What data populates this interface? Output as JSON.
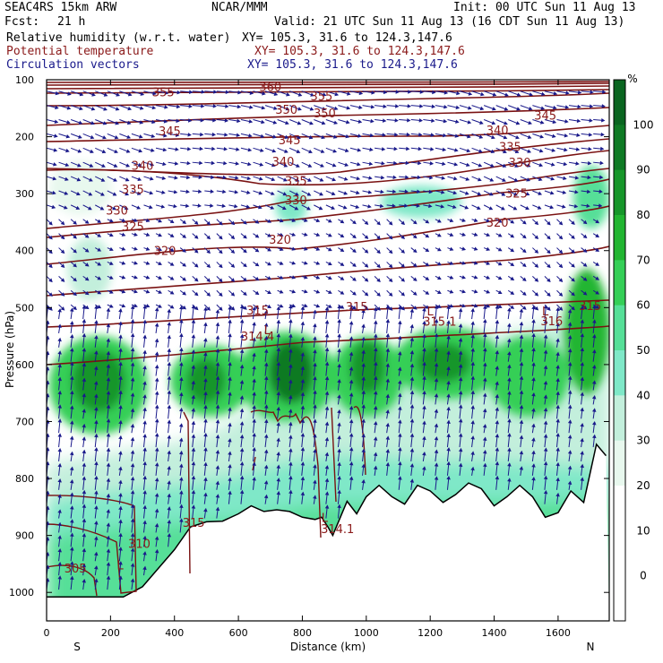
{
  "header": {
    "model": "SEAC4RS 15km ARW",
    "center": "NCAR/MMM",
    "init": "Init: 00 UTC Sun 11 Aug 13",
    "fcst_label": "Fcst:",
    "fcst_value": "21 h",
    "valid": "Valid: 21 UTC Sun 11 Aug 13 (16 CDT Sun 11 Aug 13)",
    "fields": [
      {
        "name": "Relative humidity (w.r.t. water)",
        "xy": "XY= 105.3, 31.6 to 124.3,147.6",
        "color": "#000000"
      },
      {
        "name": "Potential temperature",
        "xy": "XY= 105.3, 31.6 to 124.3,147.6",
        "color": "#8b1a1a"
      },
      {
        "name": "Circulation vectors",
        "xy": "XY= 105.3, 31.6 to 124.3,147.6",
        "color": "#1a1a8b"
      }
    ]
  },
  "chart_data": {
    "type": "heatmap",
    "xlabel": "Distance (km)",
    "ylabel": "Pressure (hPa)",
    "xlim": [
      0,
      1760
    ],
    "ylim": [
      1050,
      100
    ],
    "x_ticks": [
      0,
      200,
      400,
      600,
      800,
      1000,
      1200,
      1400,
      1600
    ],
    "y_ticks": [
      100,
      200,
      300,
      400,
      500,
      600,
      700,
      800,
      900,
      1000
    ],
    "x_end_labels": {
      "left": "S",
      "right": "N"
    },
    "colorbar": {
      "unit": "%",
      "ticks": [
        0,
        10,
        20,
        30,
        40,
        50,
        60,
        70,
        80,
        90,
        100
      ],
      "colors": [
        "#ffffff",
        "#ffffff",
        "#ffffff",
        "#e8f8ee",
        "#c3efdc",
        "#7fe8c8",
        "#56df98",
        "#35cf57",
        "#22b531",
        "#17962a",
        "#0f7a24",
        "#0a6520"
      ]
    },
    "theta_contour_labels": [
      "360",
      "355",
      "355",
      "350",
      "350",
      "345",
      "345",
      "345",
      "340",
      "340",
      "340",
      "335",
      "335",
      "335",
      "330",
      "330",
      "330",
      "325",
      "325",
      "320",
      "320",
      "320",
      "316",
      "315",
      "315",
      "315",
      "315.1",
      "314.4",
      "314.1",
      "310",
      "305",
      "L",
      "L",
      "L",
      "L",
      "L"
    ],
    "terrain": [
      [
        0,
        1008
      ],
      [
        240,
        1008
      ],
      [
        300,
        990
      ],
      [
        400,
        925
      ],
      [
        450,
        885
      ],
      [
        500,
        876
      ],
      [
        550,
        875
      ],
      [
        600,
        862
      ],
      [
        640,
        848
      ],
      [
        680,
        858
      ],
      [
        720,
        855
      ],
      [
        760,
        858
      ],
      [
        800,
        868
      ],
      [
        840,
        872
      ],
      [
        860,
        868
      ],
      [
        880,
        885
      ],
      [
        895,
        900
      ],
      [
        910,
        880
      ],
      [
        940,
        840
      ],
      [
        970,
        862
      ],
      [
        1000,
        832
      ],
      [
        1040,
        812
      ],
      [
        1080,
        832
      ],
      [
        1120,
        845
      ],
      [
        1160,
        812
      ],
      [
        1200,
        822
      ],
      [
        1240,
        842
      ],
      [
        1280,
        828
      ],
      [
        1320,
        808
      ],
      [
        1360,
        818
      ],
      [
        1400,
        848
      ],
      [
        1440,
        832
      ],
      [
        1480,
        812
      ],
      [
        1520,
        832
      ],
      [
        1560,
        868
      ],
      [
        1600,
        860
      ],
      [
        1640,
        822
      ],
      [
        1680,
        842
      ],
      [
        1720,
        740
      ],
      [
        1750,
        760
      ]
    ]
  }
}
